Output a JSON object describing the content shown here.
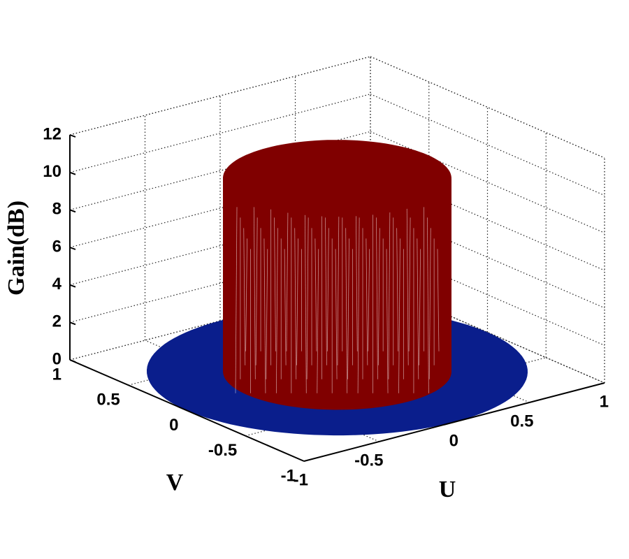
{
  "chart_data": {
    "type": "surface3d",
    "zlabel": "Gain(dB)",
    "xlabel": "U",
    "ylabel": "V",
    "xlim": [
      -1,
      1
    ],
    "xticks": [
      -1,
      -0.5,
      0,
      0.5,
      1
    ],
    "ylim": [
      -1,
      1
    ],
    "yticks": [
      -1,
      -0.5,
      0,
      0.5,
      1
    ],
    "zlim": [
      0,
      12
    ],
    "zticks": [
      0,
      2,
      4,
      6,
      8,
      10,
      12
    ],
    "grid": true,
    "series": [
      {
        "color": "#0a1e8c",
        "radius": 1,
        "z": 0
      },
      {
        "color": "#800000",
        "radius": 0.6,
        "z": 10.3
      }
    ]
  }
}
